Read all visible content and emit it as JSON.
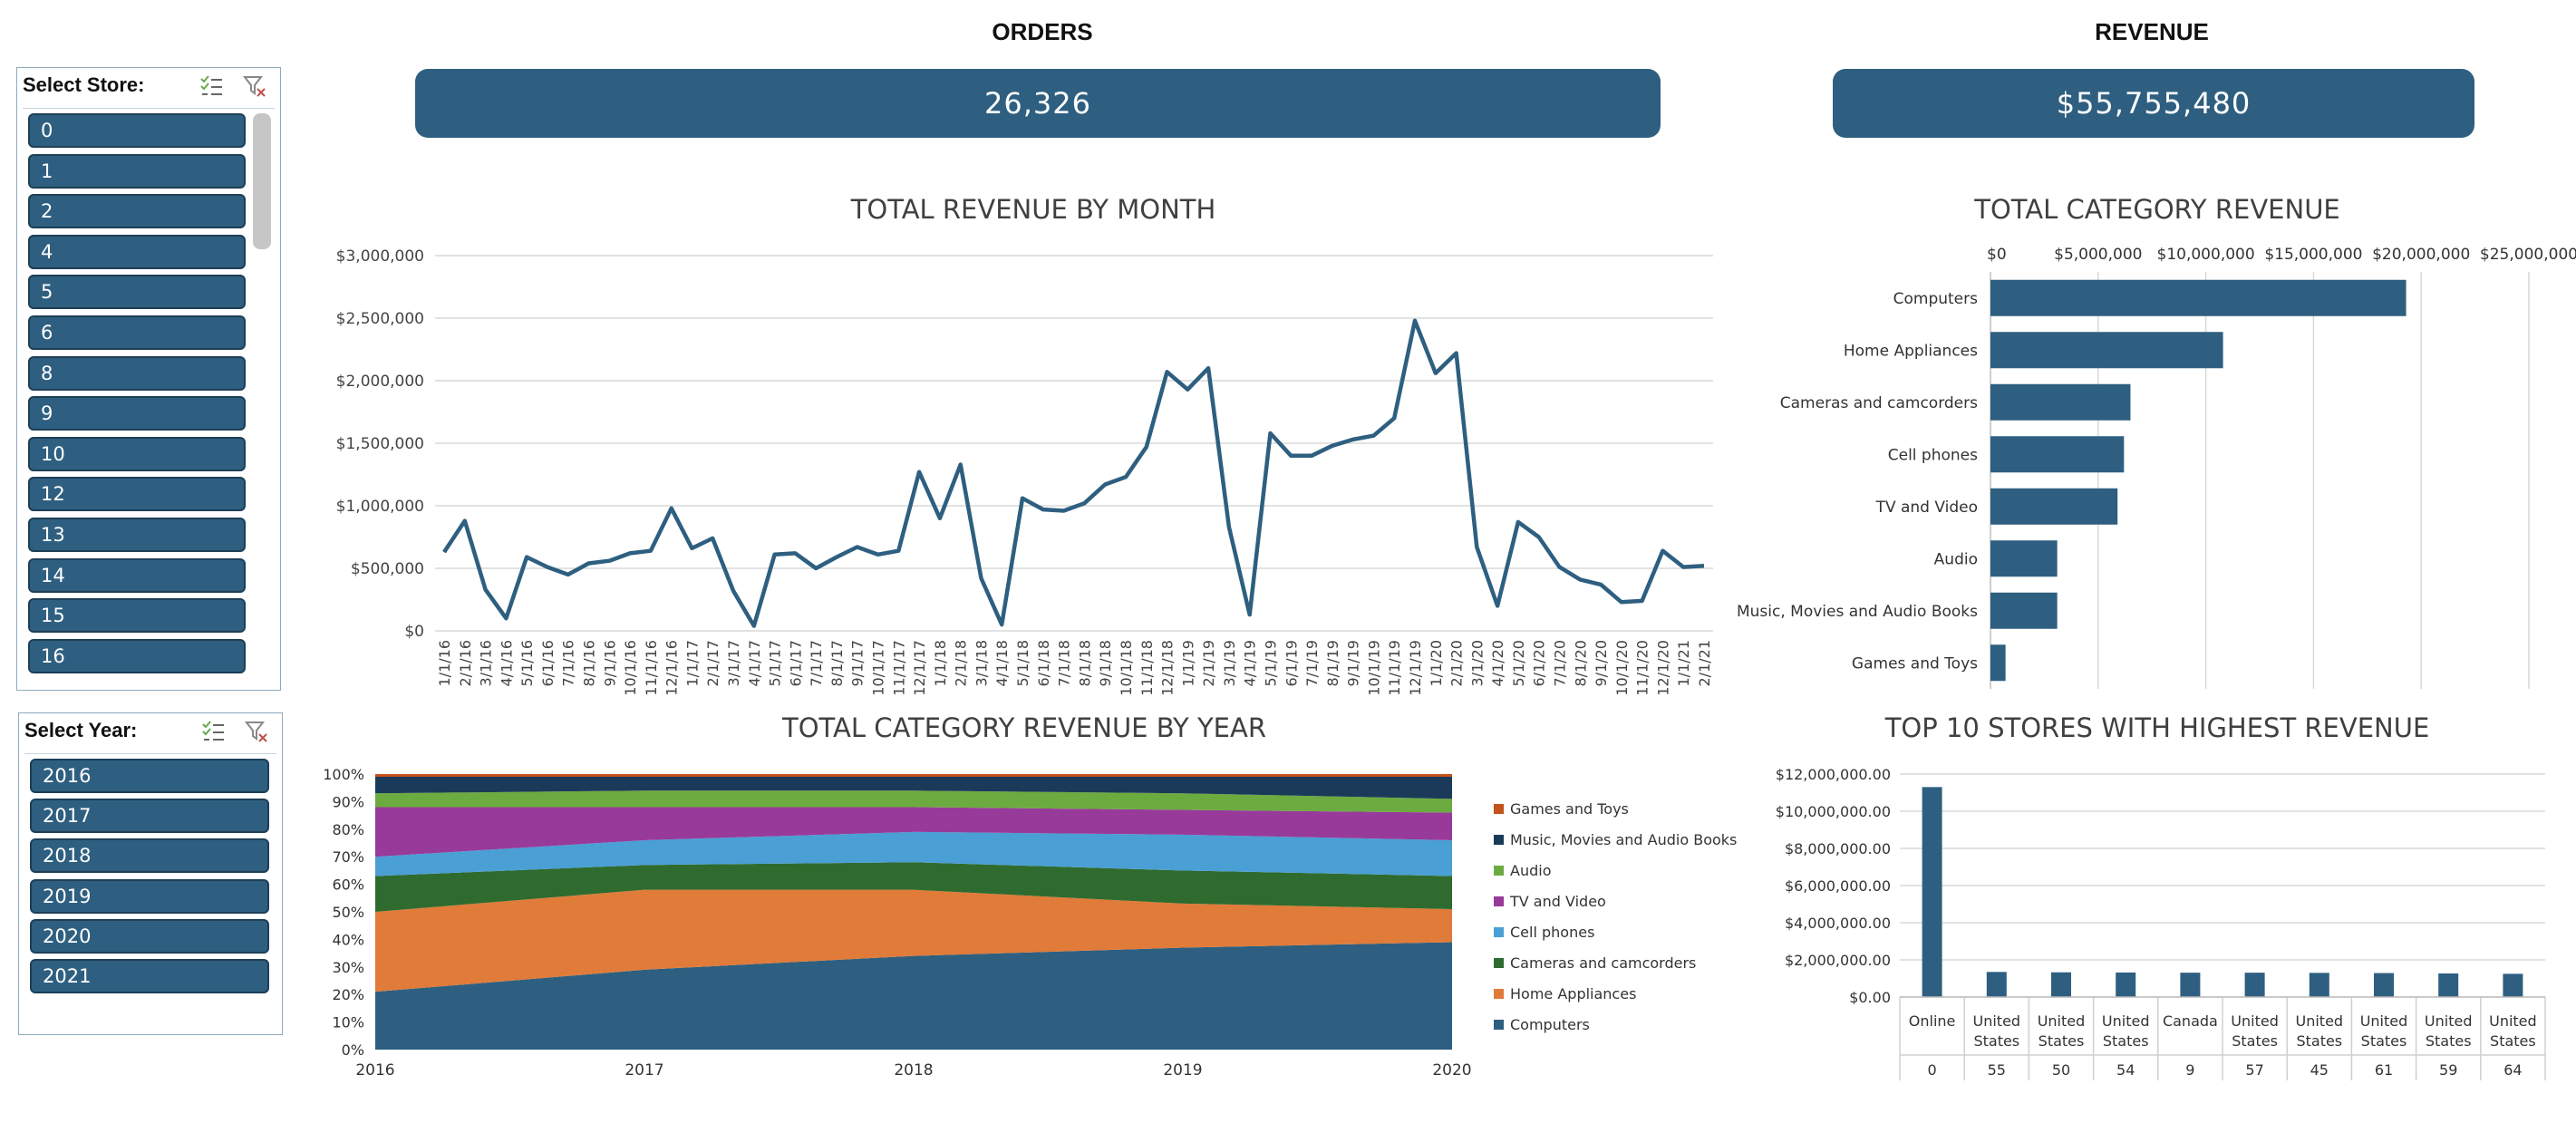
{
  "kpis": {
    "orders": {
      "title": "ORDERS",
      "value": "26,326"
    },
    "revenue": {
      "title": "REVENUE",
      "value": "$55,755,480"
    }
  },
  "store_slicer": {
    "title": "Select Store:",
    "icons": [
      "multi-select-icon",
      "clear-filter-icon"
    ],
    "items": [
      "0",
      "1",
      "2",
      "4",
      "5",
      "6",
      "8",
      "9",
      "10",
      "12",
      "13",
      "14",
      "15",
      "16"
    ]
  },
  "year_slicer": {
    "title": "Select Year:",
    "icons": [
      "multi-select-icon",
      "clear-filter-icon"
    ],
    "items": [
      "2016",
      "2017",
      "2018",
      "2019",
      "2020",
      "2021"
    ]
  },
  "colors": {
    "accent": "#2e5f80",
    "computers": "#2e5f80",
    "home_appliances": "#e07b39",
    "cameras": "#2f6b2f",
    "cell_phones": "#4a9fd4",
    "tv_video": "#983a9a",
    "audio": "#6cab40",
    "music": "#1b3a5a",
    "games": "#c2531a"
  },
  "chart_data": [
    {
      "id": "monthly",
      "type": "line",
      "title": "TOTAL REVENUE BY MONTH",
      "xlabel": "",
      "ylabel": "",
      "ylim": [
        0,
        3000000
      ],
      "y_ticks": [
        "$0",
        "$500,000",
        "$1,000,000",
        "$1,500,000",
        "$2,000,000",
        "$2,500,000",
        "$3,000,000"
      ],
      "grid": true,
      "x": [
        "1/1/16",
        "2/1/16",
        "3/1/16",
        "4/1/16",
        "5/1/16",
        "6/1/16",
        "7/1/16",
        "8/1/16",
        "9/1/16",
        "10/1/16",
        "11/1/16",
        "12/1/16",
        "1/1/17",
        "2/1/17",
        "3/1/17",
        "4/1/17",
        "5/1/17",
        "6/1/17",
        "7/1/17",
        "8/1/17",
        "9/1/17",
        "10/1/17",
        "11/1/17",
        "12/1/17",
        "1/1/18",
        "2/1/18",
        "3/1/18",
        "4/1/18",
        "5/1/18",
        "6/1/18",
        "7/1/18",
        "8/1/18",
        "9/1/18",
        "10/1/18",
        "11/1/18",
        "12/1/18",
        "1/1/19",
        "2/1/19",
        "3/1/19",
        "4/1/19",
        "5/1/19",
        "6/1/19",
        "7/1/19",
        "8/1/19",
        "9/1/19",
        "10/1/19",
        "11/1/19",
        "12/1/19",
        "1/1/20",
        "2/1/20",
        "3/1/20",
        "4/1/20",
        "5/1/20",
        "6/1/20",
        "7/1/20",
        "8/1/20",
        "9/1/20",
        "10/1/20",
        "11/1/20",
        "12/1/20",
        "1/1/21",
        "2/1/21"
      ],
      "values": [
        630000,
        880000,
        330000,
        100000,
        590000,
        510000,
        450000,
        540000,
        560000,
        620000,
        640000,
        980000,
        660000,
        740000,
        320000,
        40000,
        610000,
        620000,
        500000,
        590000,
        670000,
        610000,
        640000,
        1270000,
        900000,
        1330000,
        420000,
        50000,
        1060000,
        970000,
        960000,
        1020000,
        1170000,
        1230000,
        1470000,
        2070000,
        1930000,
        2100000,
        830000,
        130000,
        1580000,
        1400000,
        1400000,
        1480000,
        1530000,
        1560000,
        1700000,
        2480000,
        2060000,
        2220000,
        670000,
        200000,
        870000,
        750000,
        510000,
        410000,
        370000,
        230000,
        240000,
        640000,
        510000,
        520000
      ]
    },
    {
      "id": "category",
      "type": "bar",
      "orientation": "horizontal",
      "title": "TOTAL CATEGORY REVENUE",
      "xlabel": "",
      "ylabel": "",
      "xlim": [
        0,
        25000000
      ],
      "x_ticks": [
        "$0",
        "$5,000,000",
        "$10,000,000",
        "$15,000,000",
        "$20,000,000",
        "$25,000,000"
      ],
      "grid": true,
      "categories": [
        "Computers",
        "Home Appliances",
        "Cameras and camcorders",
        "Cell phones",
        "TV and Video",
        "Audio",
        "Music, Movies and Audio Books",
        "Games and Toys"
      ],
      "values": [
        19300000,
        10800000,
        6500000,
        6200000,
        5900000,
        3100000,
        3100000,
        700000
      ]
    },
    {
      "id": "yearly",
      "type": "area",
      "stacked": "percent",
      "title": "TOTAL CATEGORY REVENUE BY YEAR",
      "xlabel": "",
      "ylabel": "",
      "ylim": [
        0,
        100
      ],
      "y_ticks": [
        "0%",
        "10%",
        "20%",
        "30%",
        "40%",
        "50%",
        "60%",
        "70%",
        "80%",
        "90%",
        "100%"
      ],
      "x": [
        "2016",
        "2017",
        "2018",
        "2019",
        "2020"
      ],
      "legend_position": "right",
      "series": [
        {
          "name": "Computers",
          "color": "#2e5f80",
          "values": [
            21,
            29,
            34,
            37,
            39
          ]
        },
        {
          "name": "Home Appliances",
          "color": "#e07b39",
          "values": [
            29,
            29,
            24,
            16,
            12
          ]
        },
        {
          "name": "Cameras and camcorders",
          "color": "#2f6b2f",
          "values": [
            13,
            9,
            10,
            12,
            12
          ]
        },
        {
          "name": "Cell phones",
          "color": "#4a9fd4",
          "values": [
            7,
            9,
            11,
            13,
            13
          ]
        },
        {
          "name": "TV and Video",
          "color": "#983a9a",
          "values": [
            18,
            12,
            9,
            9,
            10
          ]
        },
        {
          "name": "Audio",
          "color": "#6cab40",
          "values": [
            5,
            6,
            6,
            6,
            5
          ]
        },
        {
          "name": "Music, Movies and Audio Books",
          "color": "#1b3a5a",
          "values": [
            6,
            5,
            5,
            6,
            8
          ]
        },
        {
          "name": "Games and Toys",
          "color": "#c2531a",
          "values": [
            1,
            1,
            1,
            1,
            1
          ]
        }
      ],
      "legend_order": [
        "Games and Toys",
        "Music, Movies and Audio Books",
        "Audio",
        "TV and Video",
        "Cell phones",
        "Cameras and camcorders",
        "Home Appliances",
        "Computers"
      ]
    },
    {
      "id": "top_stores",
      "type": "bar",
      "title": "TOP 10 STORES WITH HIGHEST REVENUE",
      "xlabel": "",
      "ylabel": "",
      "ylim": [
        0,
        12000000
      ],
      "y_ticks": [
        "$0.00",
        "$2,000,000.00",
        "$4,000,000.00",
        "$6,000,000.00",
        "$8,000,000.00",
        "$10,000,000.00",
        "$12,000,000.00"
      ],
      "grid": true,
      "categories": [
        {
          "country": "Online",
          "store": "0"
        },
        {
          "country": "United States",
          "store": "55"
        },
        {
          "country": "United States",
          "store": "50"
        },
        {
          "country": "United States",
          "store": "54"
        },
        {
          "country": "Canada",
          "store": "9"
        },
        {
          "country": "United States",
          "store": "57"
        },
        {
          "country": "United States",
          "store": "45"
        },
        {
          "country": "United States",
          "store": "61"
        },
        {
          "country": "United States",
          "store": "59"
        },
        {
          "country": "United States",
          "store": "64"
        }
      ],
      "values": [
        11300000,
        1350000,
        1330000,
        1320000,
        1310000,
        1310000,
        1300000,
        1290000,
        1270000,
        1250000
      ]
    }
  ]
}
